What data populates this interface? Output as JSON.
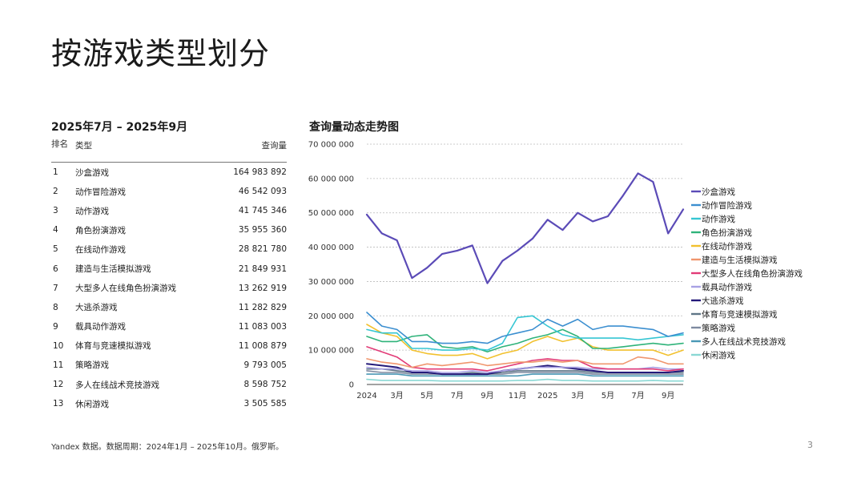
{
  "page": {
    "title": "按游戏类型划分",
    "footnote": "Yandex 数据。数据周期：2024年1月 – 2025年10月。俄罗斯。",
    "page_number": "3"
  },
  "table": {
    "title": "2025年7月 – 2025年9月",
    "headers": {
      "rank": "排名",
      "type": "类型",
      "value": "查询量"
    },
    "rows": [
      {
        "rank": "1",
        "type": "沙盒游戏",
        "value": "164 983 892"
      },
      {
        "rank": "2",
        "type": "动作冒险游戏",
        "value": "46 542 093"
      },
      {
        "rank": "3",
        "type": "动作游戏",
        "value": "41 745 346"
      },
      {
        "rank": "4",
        "type": "角色扮演游戏",
        "value": "35 955 360"
      },
      {
        "rank": "5",
        "type": "在线动作游戏",
        "value": "28 821 780"
      },
      {
        "rank": "6",
        "type": "建造与生活模拟游戏",
        "value": "21 849 931"
      },
      {
        "rank": "7",
        "type": "大型多人在线角色扮演游戏",
        "value": "13 262 919"
      },
      {
        "rank": "8",
        "type": "大逃杀游戏",
        "value": "11 282 829"
      },
      {
        "rank": "9",
        "type": "载具动作游戏",
        "value": "11 083 003"
      },
      {
        "rank": "10",
        "type": "体育与竞速模拟游戏",
        "value": "11 008 879"
      },
      {
        "rank": "11",
        "type": "策略游戏",
        "value": "9 793 005"
      },
      {
        "rank": "12",
        "type": "多人在线战术竞技游戏",
        "value": "8 598 752"
      },
      {
        "rank": "13",
        "type": "休闲游戏",
        "value": "3 505 585"
      }
    ]
  },
  "chart_data": {
    "type": "line",
    "title": "查询量动态走势图",
    "xlabel": "",
    "ylabel": "",
    "ylim": [
      0,
      70000000
    ],
    "yticks": [
      0,
      10000000,
      20000000,
      30000000,
      40000000,
      50000000,
      60000000,
      70000000
    ],
    "ytick_labels": [
      "0",
      "10 000 000",
      "20 000 000",
      "30 000 000",
      "40 000 000",
      "50 000 000",
      "60 000 000",
      "70 000 000"
    ],
    "x": [
      "2024-01",
      "2024-02",
      "2024-03",
      "2024-04",
      "2024-05",
      "2024-06",
      "2024-07",
      "2024-08",
      "2024-09",
      "2024-10",
      "2024-11",
      "2024-12",
      "2025-01",
      "2025-02",
      "2025-03",
      "2025-04",
      "2025-05",
      "2025-06",
      "2025-07",
      "2025-08",
      "2025-09",
      "2025-10"
    ],
    "xtick_labels": [
      {
        "index": 0,
        "label": "2024"
      },
      {
        "index": 2,
        "label": "3月"
      },
      {
        "index": 4,
        "label": "5月"
      },
      {
        "index": 6,
        "label": "7月"
      },
      {
        "index": 8,
        "label": "9月"
      },
      {
        "index": 10,
        "label": "11月"
      },
      {
        "index": 12,
        "label": "2025"
      },
      {
        "index": 14,
        "label": "3月"
      },
      {
        "index": 16,
        "label": "5月"
      },
      {
        "index": 18,
        "label": "7月"
      },
      {
        "index": 20,
        "label": "9月"
      }
    ],
    "grid": true,
    "legend_position": "right",
    "series": [
      {
        "name": "沙盒游戏",
        "color": "#5b4bb7",
        "width": 2.2,
        "values": [
          49.5,
          44,
          42,
          31,
          34,
          38,
          39,
          40.5,
          29.5,
          36,
          39,
          42.5,
          48,
          45,
          50,
          47.5,
          49,
          55,
          61.5,
          59,
          44,
          51
        ]
      },
      {
        "name": "动作冒险游戏",
        "color": "#3c8fd0",
        "width": 1.6,
        "values": [
          21,
          17,
          16,
          12.5,
          12.5,
          12,
          12,
          12.5,
          12,
          14,
          15,
          16,
          19,
          17,
          19,
          16,
          17,
          17,
          16.5,
          16,
          14,
          15
        ]
      },
      {
        "name": "动作游戏",
        "color": "#36c6d3",
        "width": 1.6,
        "values": [
          16,
          15,
          15,
          10.5,
          10.5,
          10,
          10,
          10.5,
          10,
          12,
          19.5,
          20,
          17,
          14.5,
          13.5,
          13.5,
          13.5,
          13.5,
          13,
          13.5,
          14,
          14.5
        ]
      },
      {
        "name": "角色扮演游戏",
        "color": "#2fb37a",
        "width": 1.6,
        "values": [
          14,
          12.5,
          12.5,
          14,
          14.5,
          11,
          10.5,
          11,
          9.5,
          11,
          12,
          13.5,
          14.5,
          16,
          14,
          10.5,
          10.5,
          11,
          11.5,
          12,
          11.5,
          12
        ]
      },
      {
        "name": "在线动作游戏",
        "color": "#f2c12e",
        "width": 1.6,
        "values": [
          17.5,
          15,
          14,
          10,
          9,
          8.5,
          8.5,
          9,
          7.5,
          9,
          10,
          12.5,
          14,
          12.5,
          13.5,
          11,
          10,
          10,
          10,
          10,
          8.5,
          10
        ]
      },
      {
        "name": "建造与生活模拟游戏",
        "color": "#f0966e",
        "width": 1.6,
        "values": [
          7.5,
          6.5,
          6,
          5,
          6,
          5.5,
          6,
          6.5,
          5.5,
          6,
          6.5,
          6.5,
          7,
          6.5,
          7,
          6,
          6,
          6,
          8,
          7.5,
          6,
          6
        ]
      },
      {
        "name": "大型多人在线角色扮演游戏",
        "color": "#e23b77",
        "width": 1.6,
        "values": [
          11,
          9.5,
          8,
          5,
          4.5,
          4.5,
          4.5,
          4.5,
          4,
          5,
          6,
          7,
          7.5,
          7,
          7,
          5,
          4.5,
          4.5,
          4.5,
          4.5,
          4,
          4.5
        ]
      },
      {
        "name": "载具动作游戏",
        "color": "#a8a1e4",
        "width": 1.6,
        "values": [
          5,
          4.5,
          4.5,
          4,
          4,
          3.5,
          3.5,
          4,
          3.5,
          4,
          4.5,
          5,
          5,
          5,
          5,
          4.5,
          4.5,
          4.5,
          4.5,
          5,
          4.5,
          4.5
        ]
      },
      {
        "name": "大逃杀游戏",
        "color": "#241a7a",
        "width": 2.0,
        "values": [
          6,
          5.5,
          5,
          3.5,
          3.5,
          3,
          3,
          3,
          3,
          4,
          4.5,
          5,
          5.5,
          5,
          4.5,
          4,
          3.5,
          3.5,
          3.5,
          3.5,
          3.5,
          4
        ]
      },
      {
        "name": "体育与竞速模拟游戏",
        "color": "#5f7687",
        "width": 1.6,
        "values": [
          4.5,
          4.5,
          4,
          3.5,
          3.5,
          3,
          3,
          3.5,
          3,
          3.5,
          4,
          4,
          4,
          4,
          4,
          3.5,
          3.5,
          3.5,
          3.5,
          3.5,
          3.5,
          3.5
        ]
      },
      {
        "name": "策略游戏",
        "color": "#7e8aa0",
        "width": 1.6,
        "values": [
          4,
          3.5,
          3.5,
          3,
          3,
          3,
          3,
          3,
          3,
          3,
          3.5,
          3.5,
          3.5,
          3.5,
          3.5,
          3,
          3,
          3,
          3,
          3,
          3,
          3
        ]
      },
      {
        "name": "多人在线战术竞技游戏",
        "color": "#4a98b5",
        "width": 1.6,
        "values": [
          3,
          3,
          3,
          2.5,
          2.5,
          2.5,
          2.5,
          2.5,
          2.5,
          2.5,
          2.5,
          3,
          3,
          3,
          3,
          2.5,
          2.5,
          2.5,
          2.5,
          2.5,
          2.5,
          2.5
        ]
      },
      {
        "name": "休闲游戏",
        "color": "#8ad8d4",
        "width": 1.6,
        "values": [
          1.5,
          1.2,
          1.2,
          1.2,
          1.2,
          1,
          1,
          1,
          1,
          1,
          1.2,
          1.2,
          1.5,
          1.2,
          1.2,
          1,
          1,
          1,
          1,
          1.2,
          1,
          1
        ]
      }
    ],
    "value_unit_note": "series values in millions of queries"
  }
}
